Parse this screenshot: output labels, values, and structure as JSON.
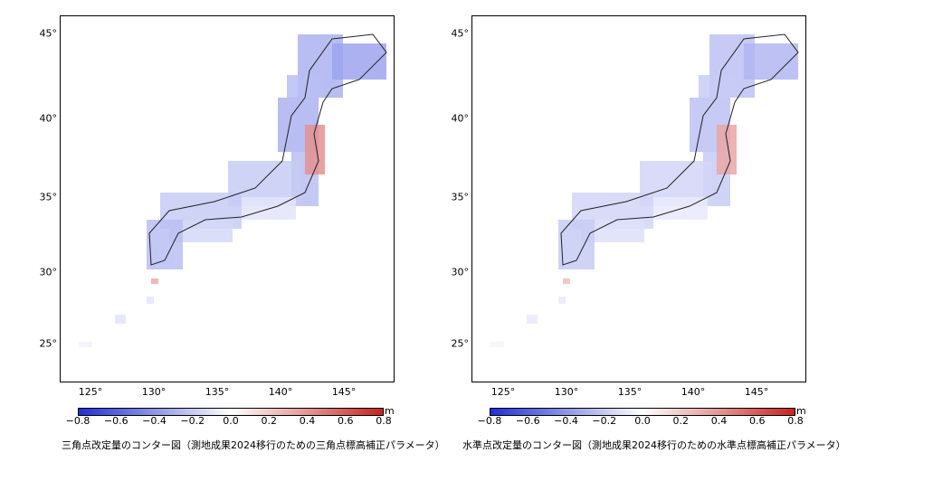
{
  "maps": [
    {
      "caption": "三角点改定量のコンター図（測地成果2024移行のための三角点標高補正パラメータ）",
      "x_ticks": [
        "125°",
        "130°",
        "135°",
        "140°",
        "145°"
      ],
      "y_ticks": [
        "45°",
        "40°",
        "35°",
        "30°",
        "25°"
      ],
      "colorbar": {
        "labels": [
          "−0.8",
          "−0.6",
          "−0.4",
          "−0.2",
          "0.0",
          "0.2",
          "0.4",
          "0.6",
          "0.8"
        ],
        "unit": "m"
      }
    },
    {
      "caption": "水準点改定量のコンター図（測地成果2024移行のための水準点標高補正パラメータ）",
      "x_ticks": [
        "125°",
        "130°",
        "135°",
        "140°",
        "145°"
      ],
      "y_ticks": [
        "45°",
        "40°",
        "35°",
        "30°",
        "25°"
      ],
      "colorbar": {
        "labels": [
          "−0.8",
          "−0.6",
          "−0.4",
          "−0.2",
          "0.0",
          "0.2",
          "0.4",
          "0.6",
          "0.8"
        ],
        "unit": "m"
      }
    }
  ],
  "colors": {
    "negative": "#1f2fd8",
    "zero": "#ffffff",
    "positive": "#c8231e"
  }
}
